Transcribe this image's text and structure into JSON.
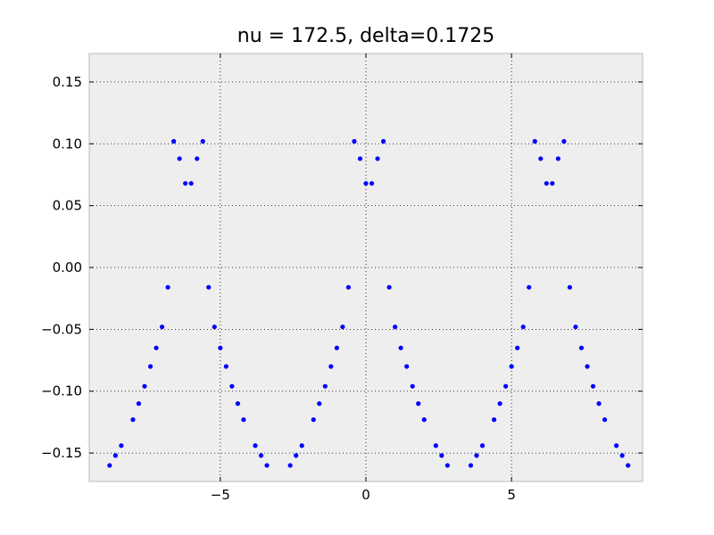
{
  "chart_data": {
    "type": "scatter",
    "title": "nu = 172.5, delta=0.1725",
    "xlabel": "",
    "ylabel": "",
    "xlim": [
      -9.5,
      9.5
    ],
    "ylim": [
      -0.173,
      0.173
    ],
    "xticks": [
      -5,
      0,
      5
    ],
    "xtick_labels": [
      "−5",
      "0",
      "5"
    ],
    "yticks": [
      0.15,
      0.1,
      0.05,
      0.0,
      -0.05,
      -0.1,
      -0.15
    ],
    "ytick_labels": [
      "0.15",
      "0.10",
      "0.05",
      "0.00",
      "−0.05",
      "−0.10",
      "−0.15"
    ],
    "grid": true,
    "grid_style": "dotted",
    "background_color": "#eeeeee",
    "marker_color": "#0000ff",
    "series": [
      {
        "points": [
          [
            -8.8,
            -0.16
          ],
          [
            -8.6,
            -0.152
          ],
          [
            -8.4,
            -0.144
          ],
          [
            -8.0,
            -0.123
          ],
          [
            -7.8,
            -0.11
          ],
          [
            -7.6,
            -0.096
          ],
          [
            -7.4,
            -0.08
          ],
          [
            -7.2,
            -0.065
          ],
          [
            -7.0,
            -0.048
          ],
          [
            -6.8,
            -0.016
          ],
          [
            -6.6,
            0.102
          ],
          [
            -6.4,
            0.088
          ],
          [
            -6.2,
            0.068
          ],
          [
            -6.0,
            0.068
          ],
          [
            -5.8,
            0.088
          ],
          [
            -5.6,
            0.102
          ],
          [
            -5.4,
            -0.016
          ],
          [
            -5.2,
            -0.048
          ],
          [
            -5.0,
            -0.065
          ],
          [
            -4.8,
            -0.08
          ],
          [
            -4.6,
            -0.096
          ],
          [
            -4.4,
            -0.11
          ],
          [
            -4.2,
            -0.123
          ],
          [
            -3.8,
            -0.144
          ],
          [
            -3.6,
            -0.152
          ],
          [
            -3.4,
            -0.16
          ],
          [
            -2.6,
            -0.16
          ],
          [
            -2.4,
            -0.152
          ],
          [
            -2.2,
            -0.144
          ],
          [
            -1.8,
            -0.123
          ],
          [
            -1.6,
            -0.11
          ],
          [
            -1.4,
            -0.096
          ],
          [
            -1.2,
            -0.08
          ],
          [
            -1.0,
            -0.065
          ],
          [
            -0.8,
            -0.048
          ],
          [
            -0.6,
            -0.016
          ],
          [
            -0.4,
            0.102
          ],
          [
            -0.2,
            0.088
          ],
          [
            0.0,
            0.068
          ],
          [
            0.2,
            0.068
          ],
          [
            0.4,
            0.088
          ],
          [
            0.6,
            0.102
          ],
          [
            0.8,
            -0.016
          ],
          [
            1.0,
            -0.048
          ],
          [
            1.2,
            -0.065
          ],
          [
            1.4,
            -0.08
          ],
          [
            1.6,
            -0.096
          ],
          [
            1.8,
            -0.11
          ],
          [
            2.0,
            -0.123
          ],
          [
            2.4,
            -0.144
          ],
          [
            2.6,
            -0.152
          ],
          [
            2.8,
            -0.16
          ],
          [
            3.6,
            -0.16
          ],
          [
            3.8,
            -0.152
          ],
          [
            4.0,
            -0.144
          ],
          [
            4.4,
            -0.123
          ],
          [
            4.6,
            -0.11
          ],
          [
            4.8,
            -0.096
          ],
          [
            5.0,
            -0.08
          ],
          [
            5.2,
            -0.065
          ],
          [
            5.4,
            -0.048
          ],
          [
            5.6,
            -0.016
          ],
          [
            5.8,
            0.102
          ],
          [
            6.0,
            0.088
          ],
          [
            6.2,
            0.068
          ],
          [
            6.4,
            0.068
          ],
          [
            6.6,
            0.088
          ],
          [
            6.8,
            0.102
          ],
          [
            7.0,
            -0.016
          ],
          [
            7.2,
            -0.048
          ],
          [
            7.4,
            -0.065
          ],
          [
            7.6,
            -0.08
          ],
          [
            7.8,
            -0.096
          ],
          [
            8.0,
            -0.11
          ],
          [
            8.2,
            -0.123
          ],
          [
            8.6,
            -0.144
          ],
          [
            8.8,
            -0.152
          ],
          [
            9.0,
            -0.16
          ]
        ]
      }
    ]
  }
}
